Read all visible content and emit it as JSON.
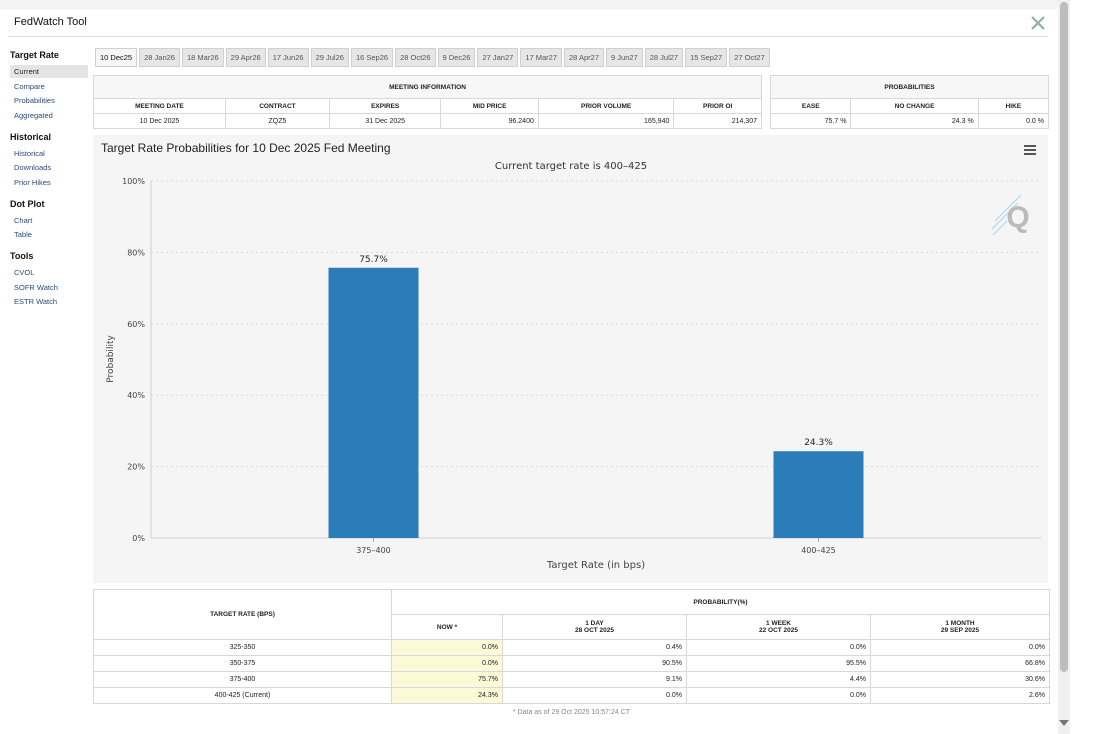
{
  "app": {
    "title": "FedWatch Tool"
  },
  "sidebar": {
    "sections": [
      {
        "heading": "Target Rate",
        "items": [
          "Current",
          "Compare",
          "Probabilities",
          "Aggregated"
        ]
      },
      {
        "heading": "Historical",
        "items": [
          "Historical",
          "Downloads",
          "Prior Hikes"
        ]
      },
      {
        "heading": "Dot Plot",
        "items": [
          "Chart",
          "Table"
        ]
      },
      {
        "heading": "Tools",
        "items": [
          "CVOL",
          "SOFR Watch",
          "ESTR Watch"
        ]
      }
    ],
    "active_item": "Current"
  },
  "meeting_tabs": [
    "10 Dec25",
    "28 Jan26",
    "18 Mar26",
    "29 Apr26",
    "17 Jun26",
    "29 Jul26",
    "16 Sep26",
    "28 Oct26",
    "9 Dec26",
    "27 Jan27",
    "17 Mar27",
    "28 Apr27",
    "9 Jun27",
    "28 Jul27",
    "15 Sep27",
    "27 Oct27"
  ],
  "meeting_info": {
    "heading": "MEETING INFORMATION",
    "columns": [
      "MEETING DATE",
      "CONTRACT",
      "EXPIRES",
      "MID PRICE",
      "PRIOR VOLUME",
      "PRIOR OI"
    ],
    "row": [
      "10 Dec 2025",
      "ZQZ5",
      "31 Dec 2025",
      "96.2400",
      "165,940",
      "214,307"
    ]
  },
  "probabilities": {
    "heading": "PROBABILITIES",
    "columns": [
      "EASE",
      "NO CHANGE",
      "HIKE"
    ],
    "row": [
      "75.7 %",
      "24.3 %",
      "0.0 %"
    ]
  },
  "chart": {
    "title": "Target Rate Probabilities for 10 Dec 2025 Fed Meeting",
    "subtitle": "Current target rate is 400–425",
    "watermark": "Q",
    "bar_color": "#2a7db8"
  },
  "chart_data": {
    "type": "bar",
    "categories": [
      "375–400",
      "400–425"
    ],
    "values": [
      75.7,
      24.3
    ],
    "data_labels": [
      "75.7%",
      "24.3%"
    ],
    "title": "Target Rate Probabilities for 10 Dec 2025 Fed Meeting",
    "subtitle": "Current target rate is 400–425",
    "xlabel": "Target Rate (in bps)",
    "ylabel": "Probability",
    "ylim": [
      0,
      100
    ],
    "yticks": [
      "0%",
      "20%",
      "40%",
      "60%",
      "80%",
      "100%"
    ],
    "grid": true,
    "legend": "none"
  },
  "prob_table": {
    "rate_header": "TARGET RATE (BPS)",
    "group_header": "PROBABILITY(%)",
    "columns": [
      {
        "label": "NOW *",
        "sub": ""
      },
      {
        "label": "1 DAY",
        "sub": "28 OCT 2025"
      },
      {
        "label": "1 WEEK",
        "sub": "22 OCT 2025"
      },
      {
        "label": "1 MONTH",
        "sub": "29 SEP 2025"
      }
    ],
    "rows": [
      {
        "rate": "325-350",
        "values": [
          "0.0%",
          "0.4%",
          "0.0%",
          "0.0%"
        ]
      },
      {
        "rate": "350-375",
        "values": [
          "0.0%",
          "90.5%",
          "95.5%",
          "66.8%"
        ]
      },
      {
        "rate": "375-400",
        "values": [
          "75.7%",
          "9.1%",
          "4.4%",
          "30.6%"
        ]
      },
      {
        "rate": "400-425 (Current)",
        "values": [
          "24.3%",
          "0.0%",
          "0.0%",
          "2.6%"
        ]
      }
    ],
    "footnote": "* Data as of 29 Oct 2025 10:57:24 CT"
  }
}
